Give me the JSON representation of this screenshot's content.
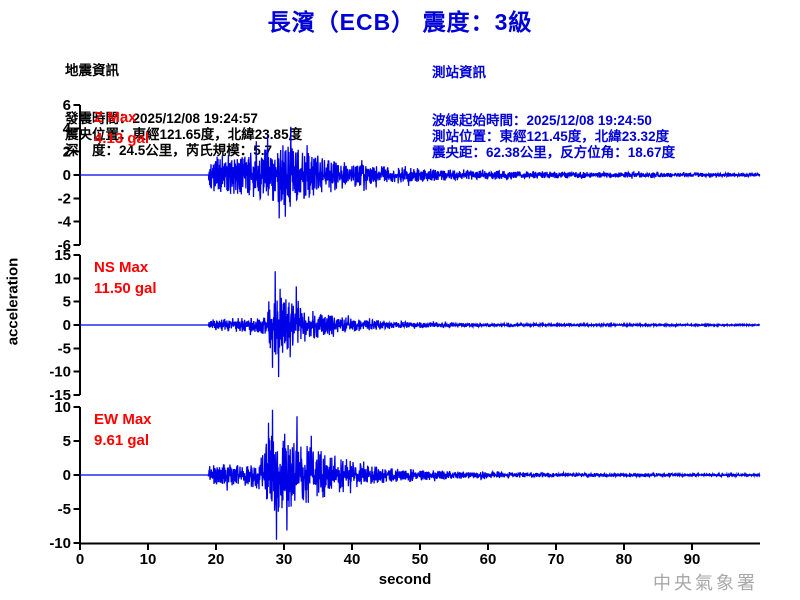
{
  "title": "長濱（ECB） 震度：3級",
  "watermark": "中央氣象署",
  "earthquake_info": {
    "heading": "地震資訊",
    "lines": [
      "發震時間：2025/12/08 19:24:57",
      "震央位置：東經121.65度，北緯23.85度",
      "深　度：24.5公里，芮氏規模：5.7"
    ]
  },
  "station_info": {
    "heading": "測站資訊",
    "lines": [
      "波線起始時間：2025/12/08 19:24:50",
      "測站位置：東經121.45度，北緯23.32度",
      "震央距：62.38公里，反方位角：18.67度"
    ]
  },
  "colors": {
    "title_blue": "#0000d8",
    "station_info_blue": "#0000dc",
    "trace_blue": "#0000e8",
    "max_label_red": "#ff0000",
    "axis_black": "#000000",
    "watermark_gray": "#a8a8a8"
  },
  "chart_data": {
    "type": "line",
    "xlabel": "second",
    "ylabel": "acceleration",
    "x_range": [
      0,
      100
    ],
    "x_ticks": [
      0,
      10,
      20,
      30,
      40,
      50,
      60,
      70,
      80,
      90
    ],
    "grid": false,
    "traces": [
      {
        "component": "Z",
        "max_title": "Z Max",
        "max_text": "4.13 gal",
        "max_gal": 4.13,
        "ylim": [
          -6,
          6
        ],
        "y_ticks": [
          6,
          4,
          2,
          0,
          -2,
          -4,
          -6
        ],
        "onset_s": 19.0,
        "peak_s": 31.0,
        "seed": 42,
        "envelope": [
          [
            0,
            0
          ],
          [
            18.85,
            0
          ],
          [
            19.0,
            1.2
          ],
          [
            21,
            1.45
          ],
          [
            24,
            1.5
          ],
          [
            26,
            1.7
          ],
          [
            28,
            2.0
          ],
          [
            30,
            2.2
          ],
          [
            32,
            2.0
          ],
          [
            34,
            1.6
          ],
          [
            36,
            1.25
          ],
          [
            39,
            1.0
          ],
          [
            42,
            0.8
          ],
          [
            45,
            0.6
          ],
          [
            48,
            0.55
          ],
          [
            50,
            0.5
          ],
          [
            54,
            0.4
          ],
          [
            58,
            0.33
          ],
          [
            62,
            0.3
          ],
          [
            68,
            0.26
          ],
          [
            75,
            0.22
          ],
          [
            82,
            0.18
          ],
          [
            90,
            0.15
          ],
          [
            96,
            0.12
          ],
          [
            100,
            0.1
          ]
        ],
        "spikes": [
          {
            "t": 31.0,
            "rel": 1.0
          },
          {
            "t": 29.3,
            "rel": -0.9
          },
          {
            "t": 27.6,
            "rel": 0.82
          },
          {
            "t": 25.9,
            "rel": 0.7
          },
          {
            "t": 33.4,
            "rel": 0.62
          }
        ]
      },
      {
        "component": "NS",
        "max_title": "NS Max",
        "max_text": "11.50 gal",
        "max_gal": 11.5,
        "ylim": [
          -15,
          15
        ],
        "y_ticks": [
          15,
          10,
          5,
          0,
          -5,
          -10,
          -15
        ],
        "onset_s": 19.0,
        "peak_s": 28.7,
        "seed": 1337,
        "envelope": [
          [
            0,
            0
          ],
          [
            18.85,
            0
          ],
          [
            19.0,
            1.1
          ],
          [
            21,
            1.3
          ],
          [
            24,
            1.35
          ],
          [
            26,
            1.5
          ],
          [
            27.5,
            2.0
          ],
          [
            28.2,
            5.8
          ],
          [
            28.8,
            6.5
          ],
          [
            29.6,
            5.6
          ],
          [
            30.5,
            4.8
          ],
          [
            31.5,
            4.3
          ],
          [
            32.5,
            3.8
          ],
          [
            34,
            2.9
          ],
          [
            35.5,
            2.3
          ],
          [
            37,
            1.9
          ],
          [
            39,
            1.5
          ],
          [
            41,
            1.2
          ],
          [
            43,
            1.0
          ],
          [
            46,
            0.75
          ],
          [
            49,
            0.6
          ],
          [
            52,
            0.5
          ],
          [
            56,
            0.4
          ],
          [
            60,
            0.33
          ],
          [
            65,
            0.28
          ],
          [
            70,
            0.25
          ],
          [
            78,
            0.2
          ],
          [
            85,
            0.17
          ],
          [
            92,
            0.14
          ],
          [
            100,
            0.12
          ]
        ],
        "spikes": [
          {
            "t": 28.7,
            "rel": 1.0
          },
          {
            "t": 29.2,
            "rel": -0.97
          },
          {
            "t": 28.3,
            "rel": -0.8
          },
          {
            "t": 31.8,
            "rel": 0.72
          },
          {
            "t": 30.9,
            "rel": -0.6
          }
        ]
      },
      {
        "component": "EW",
        "max_title": "EW Max",
        "max_text": "9.61 gal",
        "max_gal": 9.61,
        "ylim": [
          -10,
          10
        ],
        "y_ticks": [
          10,
          5,
          0,
          -5,
          -10
        ],
        "onset_s": 19.0,
        "peak_s": 28.3,
        "seed": 2024,
        "envelope": [
          [
            0,
            0
          ],
          [
            18.85,
            0
          ],
          [
            19.0,
            1.35
          ],
          [
            21,
            1.5
          ],
          [
            23,
            1.45
          ],
          [
            25,
            1.6
          ],
          [
            26.5,
            2.3
          ],
          [
            27.3,
            4.2
          ],
          [
            28.1,
            5.6
          ],
          [
            29,
            5.3
          ],
          [
            30,
            4.8
          ],
          [
            31.5,
            4.5
          ],
          [
            33,
            4.3
          ],
          [
            34.5,
            3.6
          ],
          [
            36,
            3.1
          ],
          [
            37.5,
            2.8
          ],
          [
            39,
            2.3
          ],
          [
            40.5,
            1.8
          ],
          [
            42,
            1.4
          ],
          [
            44,
            1.15
          ],
          [
            46,
            1.0
          ],
          [
            48,
            0.9
          ],
          [
            50,
            0.75
          ],
          [
            53,
            0.62
          ],
          [
            56,
            0.52
          ],
          [
            60,
            0.45
          ],
          [
            64,
            0.38
          ],
          [
            68,
            0.33
          ],
          [
            73,
            0.28
          ],
          [
            80,
            0.24
          ],
          [
            88,
            0.2
          ],
          [
            95,
            0.16
          ],
          [
            100,
            0.14
          ]
        ],
        "spikes": [
          {
            "t": 28.3,
            "rel": 1.0
          },
          {
            "t": 28.9,
            "rel": -0.99
          },
          {
            "t": 31.9,
            "rel": 0.9
          },
          {
            "t": 27.7,
            "rel": 0.8
          },
          {
            "t": 30.4,
            "rel": -0.85
          },
          {
            "t": 34.0,
            "rel": 0.6
          }
        ]
      }
    ]
  }
}
